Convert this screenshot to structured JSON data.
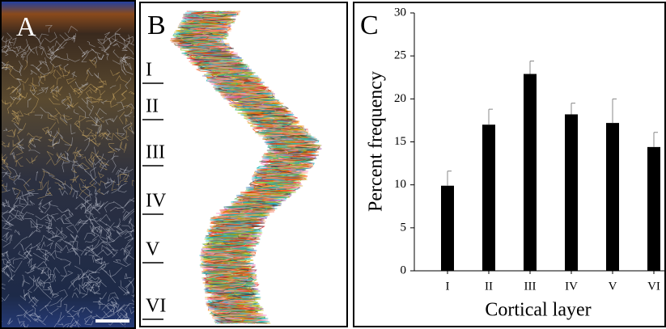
{
  "panels": {
    "a": {
      "label": "A"
    },
    "b": {
      "label": "B",
      "layers": [
        "I",
        "II",
        "III",
        "IV",
        "V",
        "VI"
      ]
    }
  },
  "chart_data": {
    "type": "bar",
    "label": "C",
    "categories": [
      "I",
      "II",
      "III",
      "IV",
      "V",
      "VI"
    ],
    "values": [
      9.9,
      17.0,
      22.9,
      18.2,
      17.2,
      14.4
    ],
    "errors": [
      1.7,
      1.8,
      1.5,
      1.3,
      2.8,
      1.7
    ],
    "color": "#000000",
    "xlabel": "Cortical layer",
    "ylabel": "Percent frequency",
    "ylim": [
      0,
      30
    ],
    "yticks": [
      0,
      5,
      10,
      15,
      20,
      25,
      30
    ]
  }
}
